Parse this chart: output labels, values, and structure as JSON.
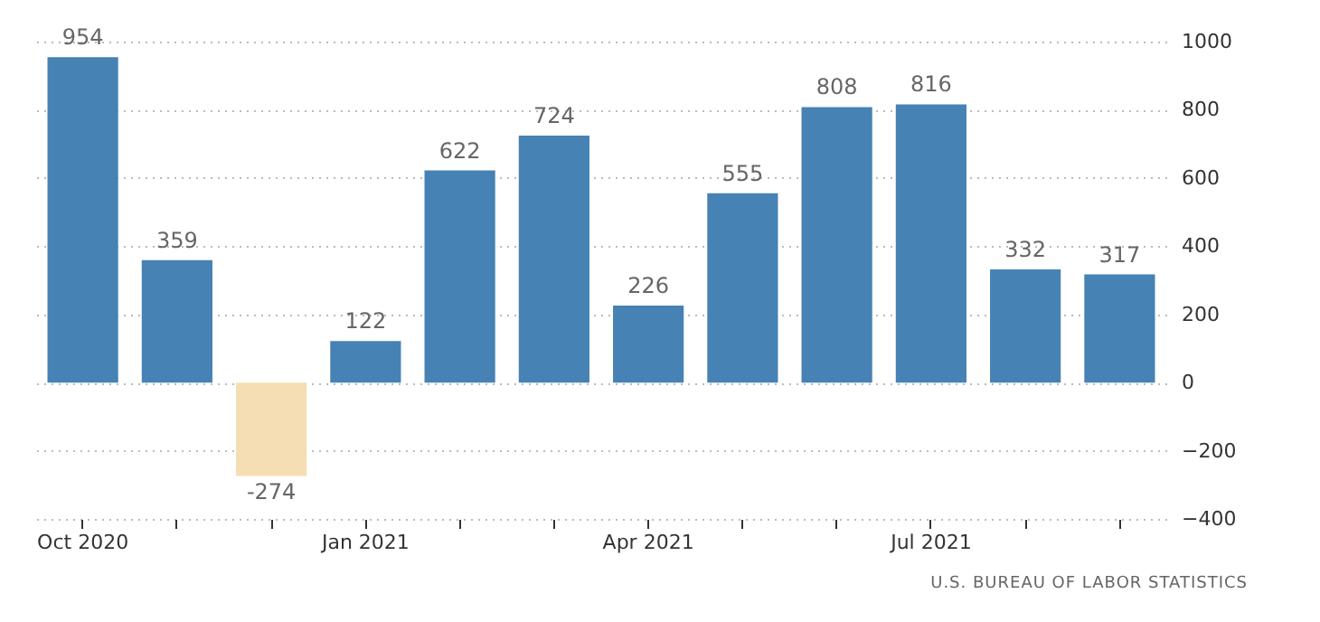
{
  "chart_data": {
    "type": "bar",
    "categories": [
      "Oct 2020",
      null,
      null,
      "Jan 2021",
      null,
      null,
      "Apr 2021",
      null,
      null,
      "Jul 2021",
      null,
      null
    ],
    "values": [
      954,
      359,
      -274,
      122,
      622,
      724,
      226,
      555,
      808,
      816,
      332,
      317
    ],
    "colors": [
      "#4682b4",
      "#4682b4",
      "#f5deb3",
      "#4682b4",
      "#4682b4",
      "#4682b4",
      "#4682b4",
      "#4682b4",
      "#4682b4",
      "#4682b4",
      "#4682b4",
      "#4682b4"
    ],
    "ylim": [
      -400,
      1000
    ],
    "yticks": [
      -400,
      -200,
      0,
      200,
      400,
      600,
      800,
      1000
    ],
    "grid": "y",
    "data_labels": true,
    "annotations": [
      "U.S. BUREAU OF LABOR STATISTICS"
    ]
  }
}
